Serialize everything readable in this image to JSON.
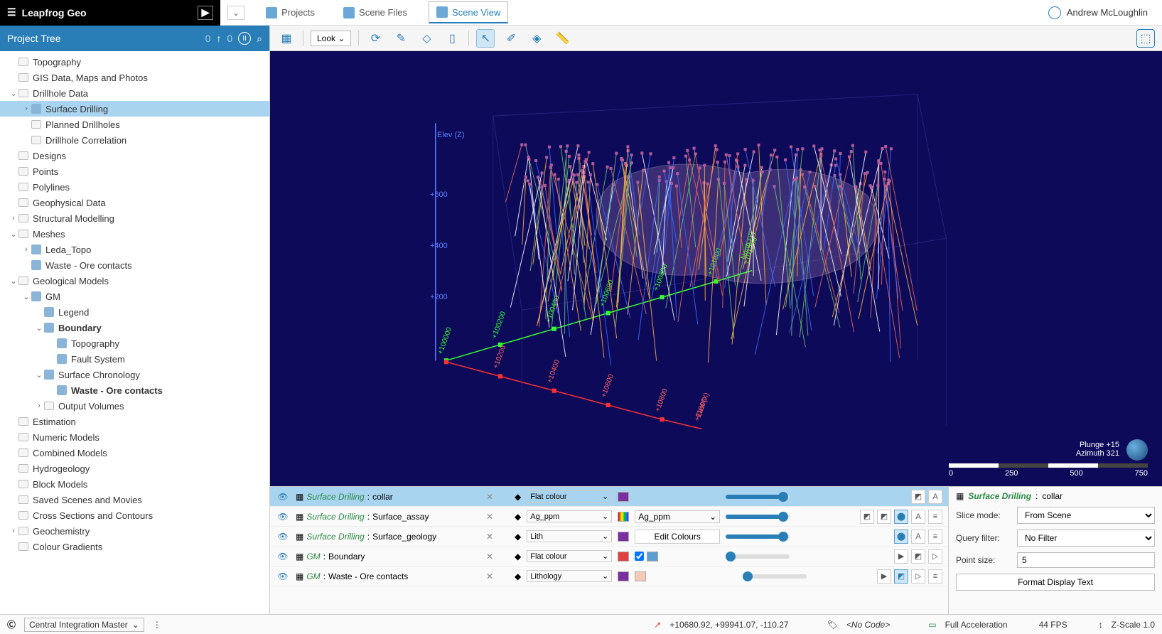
{
  "app_title": "Leapfrog Geo",
  "user_name": "Andrew McLoughlin",
  "top_tabs": [
    {
      "label": "Projects",
      "active": false
    },
    {
      "label": "Scene Files",
      "active": false
    },
    {
      "label": "Scene View",
      "active": true
    }
  ],
  "tree_header": "Project Tree",
  "tree_header_count_left": "0",
  "tree_header_count_right": "0",
  "tree": [
    {
      "depth": 0,
      "exp": "",
      "icon": "folder",
      "label": "Topography"
    },
    {
      "depth": 0,
      "exp": "",
      "icon": "folder",
      "label": "GIS Data, Maps and Photos"
    },
    {
      "depth": 0,
      "exp": "v",
      "icon": "folder",
      "label": "Drillhole Data"
    },
    {
      "depth": 1,
      "exp": ">",
      "icon": "drill",
      "label": "Surface Drilling",
      "sel": true
    },
    {
      "depth": 1,
      "exp": "",
      "icon": "folder",
      "label": "Planned Drillholes"
    },
    {
      "depth": 1,
      "exp": "",
      "icon": "folder",
      "label": "Drillhole Correlation"
    },
    {
      "depth": 0,
      "exp": "",
      "icon": "folder",
      "label": "Designs"
    },
    {
      "depth": 0,
      "exp": "",
      "icon": "folder",
      "label": "Points"
    },
    {
      "depth": 0,
      "exp": "",
      "icon": "folder",
      "label": "Polylines"
    },
    {
      "depth": 0,
      "exp": "",
      "icon": "folder",
      "label": "Geophysical Data"
    },
    {
      "depth": 0,
      "exp": ">",
      "icon": "folder",
      "label": "Structural Modelling"
    },
    {
      "depth": 0,
      "exp": "v",
      "icon": "folder",
      "label": "Meshes"
    },
    {
      "depth": 1,
      "exp": ">",
      "icon": "mesh",
      "label": "Leda_Topo"
    },
    {
      "depth": 1,
      "exp": "",
      "icon": "mesh",
      "label": "Waste - Ore contacts"
    },
    {
      "depth": 0,
      "exp": "v",
      "icon": "folder",
      "label": "Geological Models"
    },
    {
      "depth": 1,
      "exp": "v",
      "icon": "gm",
      "label": "GM"
    },
    {
      "depth": 2,
      "exp": "",
      "icon": "legend",
      "label": "Legend"
    },
    {
      "depth": 2,
      "exp": "v",
      "icon": "box",
      "label": "Boundary",
      "bold": true
    },
    {
      "depth": 3,
      "exp": "",
      "icon": "mesh",
      "label": "Topography"
    },
    {
      "depth": 3,
      "exp": "",
      "icon": "mesh",
      "label": "Fault System"
    },
    {
      "depth": 2,
      "exp": "v",
      "icon": "mesh",
      "label": "Surface Chronology"
    },
    {
      "depth": 3,
      "exp": "",
      "icon": "mesh",
      "label": "Waste - Ore contacts",
      "bold": true
    },
    {
      "depth": 2,
      "exp": ">",
      "icon": "folder",
      "label": "Output Volumes"
    },
    {
      "depth": 0,
      "exp": "",
      "icon": "folder",
      "label": "Estimation"
    },
    {
      "depth": 0,
      "exp": "",
      "icon": "folder",
      "label": "Numeric Models"
    },
    {
      "depth": 0,
      "exp": "",
      "icon": "folder",
      "label": "Combined Models"
    },
    {
      "depth": 0,
      "exp": "",
      "icon": "folder",
      "label": "Hydrogeology"
    },
    {
      "depth": 0,
      "exp": "",
      "icon": "folder",
      "label": "Block Models"
    },
    {
      "depth": 0,
      "exp": "",
      "icon": "folder",
      "label": "Saved Scenes and Movies"
    },
    {
      "depth": 0,
      "exp": "",
      "icon": "folder",
      "label": "Cross Sections and Contours"
    },
    {
      "depth": 0,
      "exp": ">",
      "icon": "folder",
      "label": "Geochemistry"
    },
    {
      "depth": 0,
      "exp": "",
      "icon": "folder",
      "label": "Colour Gradients"
    }
  ],
  "toolbar_look": "Look",
  "viewport": {
    "bg": "#0d0a5a",
    "axis_z_label": "Elev (Z)",
    "axis_z_ticks": [
      "+600",
      "+400",
      "+200"
    ],
    "axis_x_label": "East (X)",
    "axis_y_label": "North (Y)",
    "x_ticks": [
      "+10200",
      "+10400",
      "+10600",
      "+10800",
      "+11000"
    ],
    "y_ticks": [
      "+100000",
      "+100200",
      "+100400",
      "+100600",
      "+100800",
      "+101000",
      "+101200"
    ],
    "orient_plunge": "Plunge +15",
    "orient_azimuth": "Azimuth 321",
    "scale_ticks": [
      "0",
      "250",
      "500",
      "750"
    ],
    "drillhole_colors": [
      "#e86a5a",
      "#3a6cff",
      "#ffb347",
      "#ffffff",
      "#6fbf73"
    ],
    "volume_color_rgba": "rgba(200,150,200,0.25)",
    "axis_colors": {
      "x": "#ff3030",
      "y": "#30ff30",
      "z": "#5a7fff"
    }
  },
  "scene_rows": [
    {
      "sel": true,
      "src": "Surface Drilling",
      "name": "collar",
      "colby": "Flat colour",
      "swatches": [
        "#7a2fa0"
      ],
      "extra": "",
      "slider": 90,
      "btns": [
        "shape",
        "A"
      ]
    },
    {
      "sel": false,
      "src": "Surface Drilling",
      "name": "Surface_assay",
      "colby": "Ag_ppm",
      "rainbow": true,
      "extra_dd": "Ag_ppm",
      "slider": 90,
      "btns": [
        "mix",
        "seg",
        "cyl",
        "A",
        "list"
      ]
    },
    {
      "sel": false,
      "src": "Surface Drilling",
      "name": "Surface_geology",
      "colby": "Lith",
      "swatches": [
        "#7a2fa0"
      ],
      "extra_btn": "Edit Colours",
      "slider": 90,
      "btns": [
        "cyl",
        "A",
        "list"
      ]
    },
    {
      "sel": false,
      "src": "GM",
      "name": "Boundary",
      "colby": "Flat colour",
      "swatches": [
        "#e04040"
      ],
      "check": true,
      "sw2": "#5a9fd0",
      "slider": 8,
      "btns": [
        "play",
        "face",
        "tri"
      ]
    },
    {
      "sel": false,
      "src": "GM",
      "name": "Waste - Ore contacts",
      "colby": "Lithology",
      "swatches": [
        "#7a2fa0",
        "#f5c9b8"
      ],
      "slider": 8,
      "btns": [
        "play",
        "face-on",
        "tri",
        "list"
      ]
    }
  ],
  "props": {
    "title_src": "Surface Drilling",
    "title_name": "collar",
    "slice_label": "Slice mode:",
    "slice_val": "From Scene",
    "query_label": "Query filter:",
    "query_val": "No Filter",
    "point_label": "Point size:",
    "point_val": "5",
    "btn": "Format Display Text"
  },
  "status": {
    "central": "Central Integration Master",
    "coords": "+10680.92, +99941.07, -110.27",
    "nocode": "<No Code>",
    "accel": "Full Acceleration",
    "fps": "44 FPS",
    "zscale": "Z-Scale 1.0"
  }
}
